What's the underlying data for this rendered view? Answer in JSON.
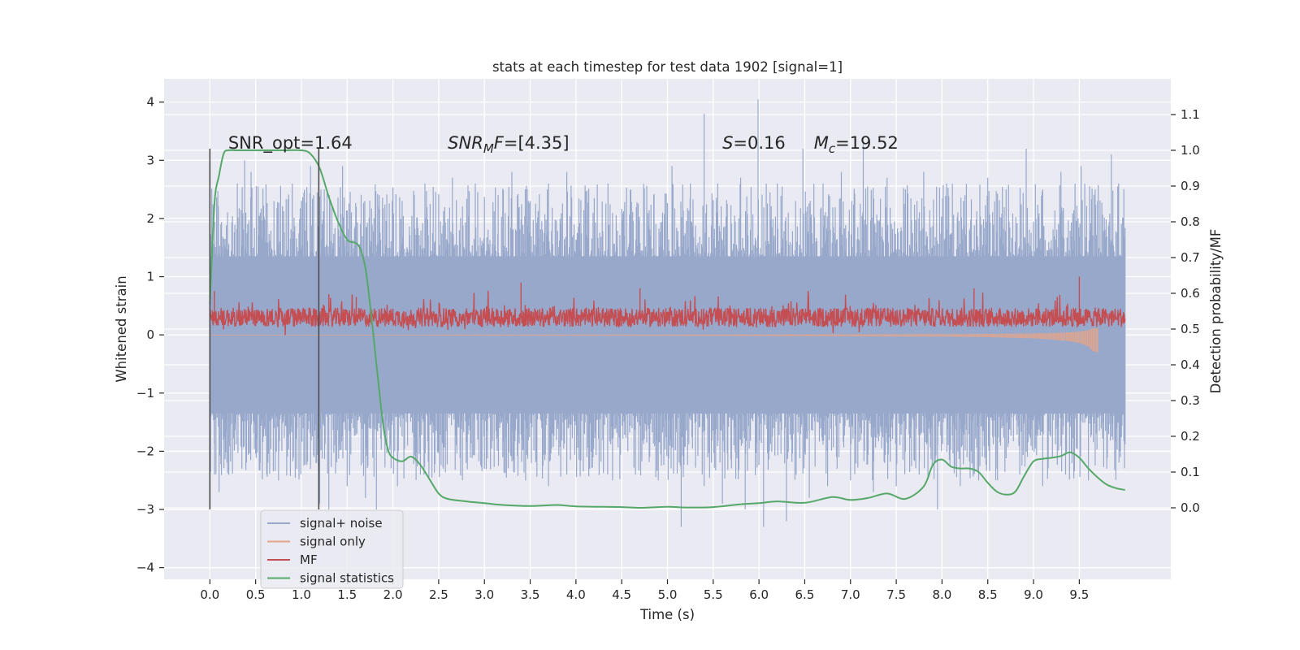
{
  "chart_data": {
    "type": "line",
    "title": "stats at each timestep for test data 1902 [signal=1]",
    "xlabel": "Time (s)",
    "ylabel_left": "Whitened strain",
    "ylabel_right": "Detection probability/MF",
    "xlim": [
      -0.5,
      10.5
    ],
    "ylim_left": [
      -4.2,
      4.4
    ],
    "ylim_right": [
      -0.2,
      1.2
    ],
    "x_ticks": [
      0.0,
      0.5,
      1.0,
      1.5,
      2.0,
      2.5,
      3.0,
      3.5,
      4.0,
      4.5,
      5.0,
      5.5,
      6.0,
      6.5,
      7.0,
      7.5,
      8.0,
      8.5,
      9.0,
      9.5
    ],
    "x_tick_labels": [
      "0.0",
      "0.5",
      "1.0",
      "1.5",
      "2.0",
      "2.5",
      "3.0",
      "3.5",
      "4.0",
      "4.5",
      "5.0",
      "5.5",
      "6.0",
      "6.5",
      "7.0",
      "7.5",
      "8.0",
      "8.5",
      "9.0",
      "9.5"
    ],
    "y_left_ticks": [
      -4,
      -3,
      -2,
      -1,
      0,
      1,
      2,
      3,
      4
    ],
    "y_left_tick_labels": [
      "−4",
      "−3",
      "−2",
      "−1",
      "0",
      "1",
      "2",
      "3",
      "4"
    ],
    "y_right_ticks": [
      0.0,
      0.1,
      0.2,
      0.3,
      0.4,
      0.5,
      0.6,
      0.7,
      0.8,
      0.9,
      1.0,
      1.1
    ],
    "y_right_tick_labels": [
      "0.0",
      "0.1",
      "0.2",
      "0.3",
      "0.4",
      "0.5",
      "0.6",
      "0.7",
      "0.8",
      "0.9",
      "1.0",
      "1.1"
    ],
    "grid": true,
    "legend_placement": "lower-left",
    "annotations": [
      {
        "kind": "plain",
        "text": "SNR_opt=1.64",
        "x": 0.2,
        "y": 3.2
      },
      {
        "kind": "sub",
        "main": "SNR",
        "sub": "M",
        "rest": "F=[4.35]",
        "x": 2.6,
        "y": 3.2
      },
      {
        "kind": "italic",
        "main": "S",
        "rest": "=0.16",
        "x": 5.6,
        "y": 3.2
      },
      {
        "kind": "sub",
        "main": "M",
        "sub": "c",
        "rest": "=19.52",
        "x": 6.6,
        "y": 3.2
      }
    ],
    "vlines": [
      {
        "x": 0.0,
        "y0": -3.0,
        "y1": 3.2
      },
      {
        "x": 1.19,
        "y0": -3.0,
        "y1": 3.2
      }
    ],
    "series": [
      {
        "name": "signal+ noise",
        "axis": "left",
        "style": "noise-band",
        "t_start": 0.0,
        "t_end": 10.0,
        "band_upper": 1.35,
        "band_lower": -1.35,
        "spikes_up": [
          [
            0.0,
            2.15
          ],
          [
            0.12,
            1.9
          ],
          [
            0.3,
            2.6
          ],
          [
            0.38,
            3.0
          ],
          [
            0.45,
            2.8
          ],
          [
            0.55,
            2.1
          ],
          [
            0.7,
            2.3
          ],
          [
            0.9,
            2.6
          ],
          [
            1.1,
            2.9
          ],
          [
            1.25,
            2.5
          ],
          [
            1.45,
            2.9
          ],
          [
            1.6,
            2.2
          ],
          [
            1.85,
            2.4
          ],
          [
            2.1,
            2.3
          ],
          [
            2.35,
            2.6
          ],
          [
            2.65,
            2.7
          ],
          [
            2.9,
            2.6
          ],
          [
            3.15,
            2.4
          ],
          [
            3.3,
            2.8
          ],
          [
            3.5,
            2.3
          ],
          [
            3.7,
            2.6
          ],
          [
            3.9,
            2.8
          ],
          [
            4.1,
            2.3
          ],
          [
            4.35,
            2.6
          ],
          [
            4.6,
            2.5
          ],
          [
            4.85,
            2.4
          ],
          [
            5.05,
            2.9
          ],
          [
            5.25,
            2.6
          ],
          [
            5.4,
            3.8
          ],
          [
            5.55,
            2.6
          ],
          [
            5.8,
            2.7
          ],
          [
            5.99,
            4.05
          ],
          [
            6.2,
            2.6
          ],
          [
            6.4,
            2.3
          ],
          [
            6.48,
            3.2
          ],
          [
            6.7,
            2.6
          ],
          [
            6.9,
            2.8
          ],
          [
            7.14,
            3.3
          ],
          [
            7.4,
            2.7
          ],
          [
            7.6,
            2.5
          ],
          [
            7.8,
            2.8
          ],
          [
            8.05,
            2.6
          ],
          [
            8.25,
            2.4
          ],
          [
            8.5,
            2.7
          ],
          [
            8.7,
            2.5
          ],
          [
            8.92,
            3.2
          ],
          [
            9.1,
            2.5
          ],
          [
            9.3,
            2.8
          ],
          [
            9.52,
            2.9
          ],
          [
            9.7,
            2.3
          ],
          [
            9.85,
            3.1
          ],
          [
            9.93,
            2.6
          ],
          [
            9.98,
            2.0
          ]
        ],
        "spikes_down": [
          [
            0.05,
            -2.4
          ],
          [
            0.1,
            -2.7
          ],
          [
            0.35,
            -2.3
          ],
          [
            0.55,
            -2.2
          ],
          [
            0.75,
            -2.5
          ],
          [
            0.95,
            -2.3
          ],
          [
            1.2,
            -2.9
          ],
          [
            1.3,
            -3.0
          ],
          [
            1.5,
            -2.6
          ],
          [
            1.7,
            -2.8
          ],
          [
            1.82,
            -3.0
          ],
          [
            2.05,
            -2.6
          ],
          [
            2.3,
            -2.4
          ],
          [
            2.55,
            -2.3
          ],
          [
            2.8,
            -2.2
          ],
          [
            3.0,
            -2.3
          ],
          [
            3.2,
            -2.1
          ],
          [
            3.45,
            -2.5
          ],
          [
            3.7,
            -2.6
          ],
          [
            3.9,
            -2.4
          ],
          [
            4.15,
            -2.3
          ],
          [
            4.4,
            -2.5
          ],
          [
            4.65,
            -2.4
          ],
          [
            4.9,
            -2.5
          ],
          [
            5.15,
            -3.3
          ],
          [
            5.4,
            -2.6
          ],
          [
            5.6,
            -2.9
          ],
          [
            5.85,
            -3.0
          ],
          [
            6.05,
            -3.3
          ],
          [
            6.3,
            -3.2
          ],
          [
            6.55,
            -2.8
          ],
          [
            6.75,
            -2.6
          ],
          [
            7.0,
            -2.5
          ],
          [
            7.25,
            -2.7
          ],
          [
            7.5,
            -2.6
          ],
          [
            7.75,
            -2.4
          ],
          [
            7.95,
            -3.0
          ],
          [
            8.2,
            -2.6
          ],
          [
            8.4,
            -2.5
          ],
          [
            8.6,
            -2.3
          ],
          [
            8.85,
            -2.4
          ],
          [
            9.1,
            -2.6
          ],
          [
            9.35,
            -2.4
          ],
          [
            9.6,
            -2.5
          ],
          [
            9.8,
            -2.3
          ],
          [
            9.95,
            -2.1
          ]
        ]
      },
      {
        "name": "signal only",
        "axis": "left",
        "style": "chirp",
        "x": [
          0.0,
          2.0,
          4.0,
          6.0,
          7.0,
          8.0,
          8.5,
          9.0,
          9.2,
          9.4,
          9.5,
          9.6,
          9.65,
          9.7
        ],
        "amplitude": [
          0.01,
          0.01,
          0.015,
          0.02,
          0.025,
          0.03,
          0.04,
          0.06,
          0.08,
          0.11,
          0.14,
          0.2,
          0.28,
          0.3
        ]
      },
      {
        "name": "MF",
        "axis": "left",
        "style": "dense-noise",
        "t_start": 0.0,
        "t_end": 10.0,
        "center": 0.3,
        "range": [
          0.0,
          0.75
        ],
        "peaks": [
          [
            0.05,
            0.75
          ],
          [
            1.3,
            0.7
          ],
          [
            1.6,
            0.65
          ],
          [
            3.4,
            0.9
          ],
          [
            4.7,
            0.8
          ],
          [
            8.35,
            0.8
          ],
          [
            9.5,
            1.0
          ]
        ]
      },
      {
        "name": "signal statistics",
        "axis": "right",
        "style": "line",
        "x": [
          0.0,
          0.05,
          0.1,
          0.15,
          0.2,
          0.3,
          0.4,
          0.6,
          0.8,
          1.0,
          1.1,
          1.2,
          1.3,
          1.4,
          1.5,
          1.6,
          1.65,
          1.7,
          1.75,
          1.8,
          1.85,
          1.9,
          1.95,
          2.0,
          2.1,
          2.2,
          2.3,
          2.4,
          2.5,
          2.6,
          2.8,
          3.0,
          3.2,
          3.5,
          3.8,
          4.0,
          4.5,
          4.7,
          5.0,
          5.2,
          5.5,
          5.8,
          6.0,
          6.2,
          6.5,
          6.8,
          7.0,
          7.2,
          7.4,
          7.6,
          7.8,
          7.9,
          8.0,
          8.1,
          8.2,
          8.3,
          8.4,
          8.5,
          8.6,
          8.7,
          8.8,
          8.9,
          9.0,
          9.1,
          9.2,
          9.3,
          9.4,
          9.5,
          9.6,
          9.7,
          9.8,
          9.9,
          10.0
        ],
        "y": [
          0.57,
          0.85,
          0.93,
          0.99,
          1.0,
          1.0,
          1.0,
          1.0,
          1.0,
          1.0,
          0.99,
          0.95,
          0.87,
          0.8,
          0.75,
          0.74,
          0.72,
          0.67,
          0.57,
          0.45,
          0.33,
          0.22,
          0.16,
          0.14,
          0.13,
          0.143,
          0.12,
          0.08,
          0.04,
          0.025,
          0.018,
          0.013,
          0.008,
          0.005,
          0.008,
          0.004,
          0.002,
          0.0,
          0.003,
          0.001,
          0.002,
          0.01,
          0.013,
          0.018,
          0.014,
          0.03,
          0.022,
          0.028,
          0.04,
          0.025,
          0.06,
          0.12,
          0.135,
          0.115,
          0.11,
          0.11,
          0.1,
          0.07,
          0.045,
          0.037,
          0.045,
          0.09,
          0.13,
          0.137,
          0.14,
          0.145,
          0.155,
          0.14,
          0.11,
          0.085,
          0.065,
          0.055,
          0.05
        ]
      }
    ]
  },
  "colors": {
    "plot_bg": "#eaeaf2",
    "grid": "#ffffff",
    "noise": "#97a8cb",
    "signal_only": "#e2a58c",
    "mf": "#c44e52",
    "stats": "#55a868",
    "vline": "#4d4d4d",
    "text": "#262626"
  }
}
